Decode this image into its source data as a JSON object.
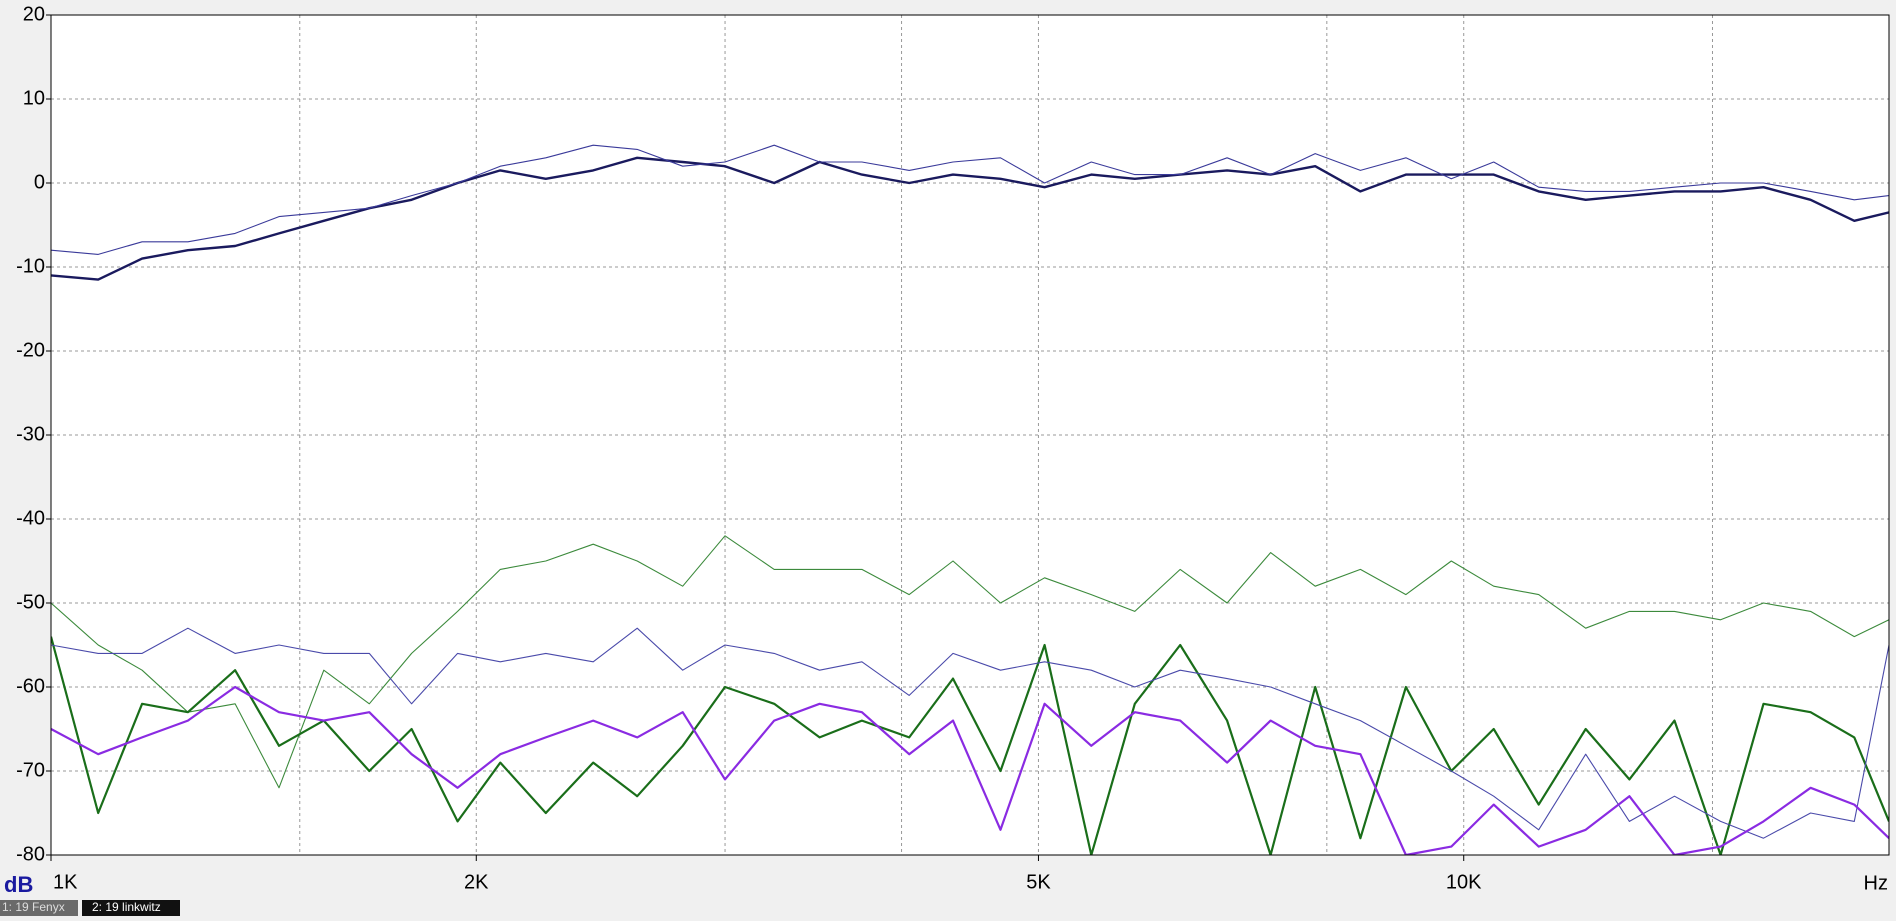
{
  "chart_data": {
    "type": "line",
    "log_x": true,
    "grid": true,
    "xlim": [
      1000,
      20000
    ],
    "ylim": [
      -80,
      20
    ],
    "yticks": [
      20,
      10,
      0,
      -10,
      -20,
      -30,
      -40,
      -50,
      -60,
      -70,
      -80
    ],
    "xticks": [
      {
        "value": 1000,
        "label": "1K"
      },
      {
        "value": 2000,
        "label": "2K"
      },
      {
        "value": 5000,
        "label": "5K"
      },
      {
        "value": 10000,
        "label": "10K"
      }
    ],
    "xgrid": [
      1500,
      2000,
      3000,
      4000,
      5000,
      8000,
      10000,
      15000
    ],
    "y_label": "dB",
    "x_label": "Hz",
    "x": [
      1000,
      1080,
      1160,
      1250,
      1350,
      1450,
      1560,
      1680,
      1800,
      1940,
      2080,
      2240,
      2420,
      2600,
      2800,
      3000,
      3250,
      3500,
      3750,
      4050,
      4350,
      4700,
      5050,
      5450,
      5850,
      6300,
      6800,
      7300,
      7850,
      8450,
      9100,
      9800,
      10500,
      11300,
      12200,
      13100,
      14100,
      15200,
      16300,
      17600,
      18900,
      20000
    ],
    "series": [
      {
        "color": "#1a1a5e",
        "width": 2.4,
        "values": [
          -11,
          -11.5,
          -9,
          -8,
          -7.5,
          -6,
          -4.5,
          -3,
          -2,
          0,
          1.5,
          0.5,
          1.5,
          3,
          2.5,
          2,
          0,
          2.5,
          1,
          0,
          1,
          0.5,
          -0.5,
          1,
          0.5,
          1,
          1.5,
          1,
          2,
          -1,
          1,
          1,
          1,
          -1,
          -2,
          -1.5,
          -1,
          -1,
          -0.5,
          -2,
          -4.5,
          -3.5
        ]
      },
      {
        "color": "#3a3a9a",
        "width": 1.1,
        "values": [
          -8,
          -8.5,
          -7,
          -7,
          -6,
          -4,
          -3.5,
          -3,
          -1.5,
          0,
          2,
          3,
          4.5,
          4,
          2,
          2.5,
          4.5,
          2.5,
          2.5,
          1.5,
          2.5,
          3,
          0,
          2.5,
          1,
          1,
          3,
          1,
          3.5,
          1.5,
          3,
          0.5,
          2.5,
          -0.5,
          -1,
          -1,
          -0.5,
          0,
          0,
          -1,
          -2,
          -1.5
        ]
      },
      {
        "color": "#3c8a3c",
        "width": 1.1,
        "values": [
          -50,
          -55,
          -58,
          -63,
          -62,
          -72,
          -58,
          -62,
          -56,
          -51,
          -46,
          -45,
          -43,
          -45,
          -48,
          -42,
          -46,
          -46,
          -46,
          -49,
          -45,
          -50,
          -47,
          -49,
          -51,
          -46,
          -50,
          -44,
          -48,
          -46,
          -49,
          -45,
          -48,
          -49,
          -53,
          -51,
          -51,
          -52,
          -50,
          -51,
          -54,
          -52
        ]
      },
      {
        "color": "#1a6e1a",
        "width": 2.2,
        "values": [
          -54,
          -75,
          -62,
          -63,
          -58,
          -67,
          -64,
          -70,
          -65,
          -76,
          -69,
          -75,
          -69,
          -73,
          -67,
          -60,
          -62,
          -66,
          -64,
          -66,
          -59,
          -70,
          -55,
          -80,
          -62,
          -55,
          -64,
          -80,
          -60,
          -78,
          -60,
          -70,
          -65,
          -74,
          -65,
          -71,
          -64,
          -80,
          -62,
          -63,
          -66,
          -76
        ]
      },
      {
        "color": "#4a4aaa",
        "width": 1.1,
        "values": [
          -55,
          -56,
          -56,
          -53,
          -56,
          -55,
          -56,
          -56,
          -62,
          -56,
          -57,
          -56,
          -57,
          -53,
          -58,
          -55,
          -56,
          -58,
          -57,
          -61,
          -56,
          -58,
          -57,
          -58,
          -60,
          -58,
          -59,
          -60,
          -62,
          -64,
          -67,
          -70,
          -73,
          -77,
          -68,
          -76,
          -73,
          -76,
          -78,
          -75,
          -76,
          -55
        ]
      },
      {
        "color": "#8a2be2",
        "width": 2.2,
        "values": [
          -65,
          -68,
          -66,
          -64,
          -60,
          -63,
          -64,
          -63,
          -68,
          -72,
          -68,
          -66,
          -64,
          -66,
          -63,
          -71,
          -64,
          -62,
          -63,
          -68,
          -64,
          -77,
          -62,
          -67,
          -63,
          -64,
          -69,
          -64,
          -67,
          -68,
          -80,
          -79,
          -74,
          -79,
          -77,
          -73,
          -80,
          -79,
          -76,
          -72,
          -74,
          -78
        ]
      }
    ]
  },
  "tabs": [
    "1: 19 Fenyx",
    "2: 19 linkwitz"
  ]
}
